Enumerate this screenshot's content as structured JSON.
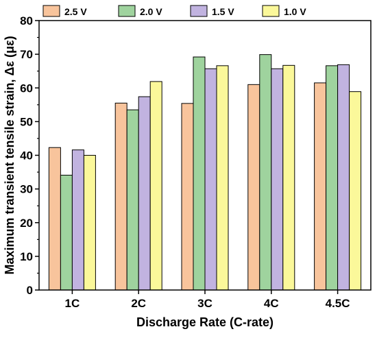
{
  "chart_data": {
    "type": "bar",
    "title": "",
    "xlabel": "Discharge Rate (C-rate)",
    "ylabel": "Maximum transient tensile strain, Δε (με)",
    "categories": [
      "1C",
      "2C",
      "3C",
      "4C",
      "4.5C"
    ],
    "ylim": [
      0,
      80
    ],
    "yticks": [
      0,
      10,
      20,
      30,
      40,
      50,
      60,
      70,
      80
    ],
    "grid": false,
    "legend_position": "top",
    "series": [
      {
        "name": "2.5 V",
        "color": "#F8C49C",
        "values": [
          42.3,
          55.5,
          55.4,
          61.0,
          61.5
        ]
      },
      {
        "name": "2.0 V",
        "color": "#9FD39E",
        "values": [
          34.1,
          53.5,
          69.2,
          69.9,
          66.6
        ]
      },
      {
        "name": "1.5 V",
        "color": "#C1B3E0",
        "values": [
          41.6,
          57.4,
          65.7,
          65.7,
          66.9
        ]
      },
      {
        "name": "1.0 V",
        "color": "#FBF89A",
        "values": [
          40.0,
          61.9,
          66.6,
          66.7,
          58.9
        ]
      }
    ]
  }
}
